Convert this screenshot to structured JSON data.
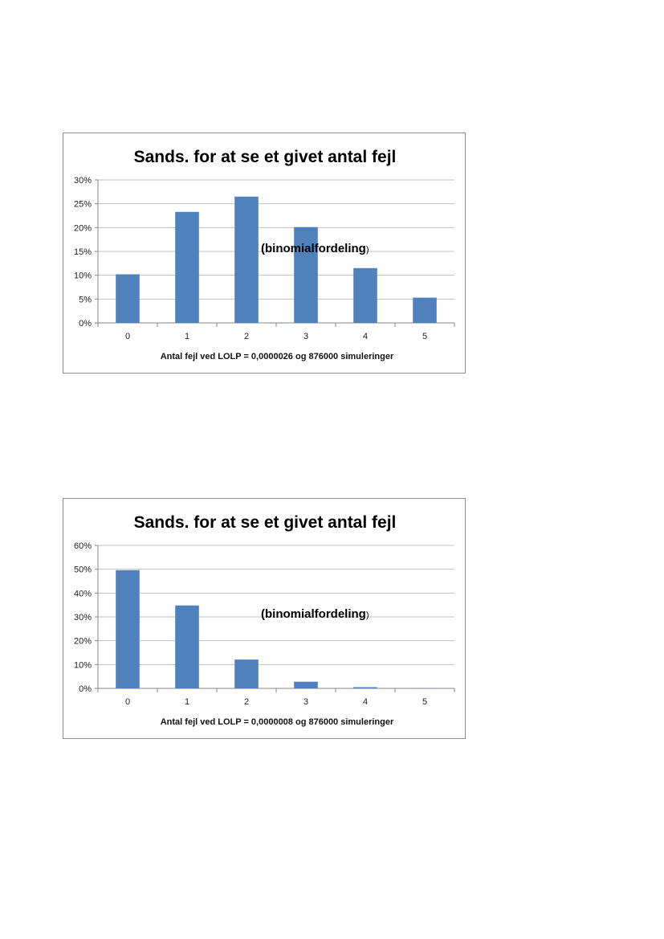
{
  "chart_data": [
    {
      "type": "bar",
      "title": "Sands. for at se et givet antal fejl",
      "annotation": "(binomialfordeling",
      "annotation_close": ")",
      "xlabel": "Antal fejl ved LOLP = 0,0000026 og 876000 simuleringer",
      "ylabel": "",
      "categories": [
        "0",
        "1",
        "2",
        "3",
        "4",
        "5"
      ],
      "values": [
        0.102,
        0.233,
        0.265,
        0.201,
        0.115,
        0.053
      ],
      "ylim": [
        0,
        0.3
      ],
      "yticks": [
        0,
        0.05,
        0.1,
        0.15,
        0.2,
        0.25,
        0.3
      ],
      "ytick_labels": [
        "0%",
        "5%",
        "10%",
        "15%",
        "20%",
        "25%",
        "30%"
      ],
      "grid": true,
      "bar_color": "#4f81bd"
    },
    {
      "type": "bar",
      "title": "Sands. for at se et givet antal fejl",
      "annotation": "(binomialfordeling",
      "annotation_close": ")",
      "xlabel": "Antal fejl ved LOLP = 0,0000008 og 876000 simuleringer",
      "ylabel": "",
      "categories": [
        "0",
        "1",
        "2",
        "3",
        "4",
        "5"
      ],
      "values": [
        0.496,
        0.348,
        0.121,
        0.028,
        0.005,
        0.001
      ],
      "ylim": [
        0,
        0.6
      ],
      "yticks": [
        0,
        0.1,
        0.2,
        0.3,
        0.4,
        0.5,
        0.6
      ],
      "ytick_labels": [
        "0%",
        "10%",
        "20%",
        "30%",
        "40%",
        "50%",
        "60%"
      ],
      "grid": true,
      "bar_color": "#4f81bd"
    }
  ]
}
